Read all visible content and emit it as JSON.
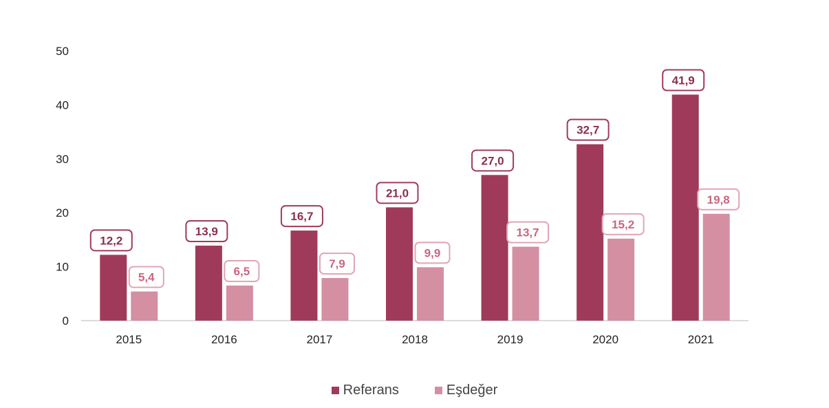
{
  "chart_data": {
    "type": "bar",
    "categories": [
      "2015",
      "2016",
      "2017",
      "2018",
      "2019",
      "2020",
      "2021"
    ],
    "series": [
      {
        "name": "Referans",
        "values": [
          12.2,
          13.9,
          16.7,
          21.0,
          27.0,
          32.7,
          41.9
        ],
        "labels": [
          "12,2",
          "13,9",
          "16,7",
          "21,0",
          "27,0",
          "32,7",
          "41,9"
        ],
        "color": "#a03a5b"
      },
      {
        "name": "Eşdeğer",
        "values": [
          5.4,
          6.5,
          7.9,
          9.9,
          13.7,
          15.2,
          19.8
        ],
        "labels": [
          "5,4",
          "6,5",
          "7,9",
          "9,9",
          "13,7",
          "15,2",
          "19,8"
        ],
        "color": "#d48fa3"
      }
    ],
    "yticks": [
      "0",
      "10",
      "20",
      "30",
      "40",
      "50"
    ],
    "ylim": [
      0,
      50
    ],
    "grid": false,
    "legend_position": "bottom"
  },
  "colors": {
    "label_border_1": "#a03a5b",
    "label_border_2": "#e0a4b6",
    "label_text_1": "#8c2f4c",
    "label_text_2": "#c9667f",
    "axis": "#d0d0d0"
  }
}
